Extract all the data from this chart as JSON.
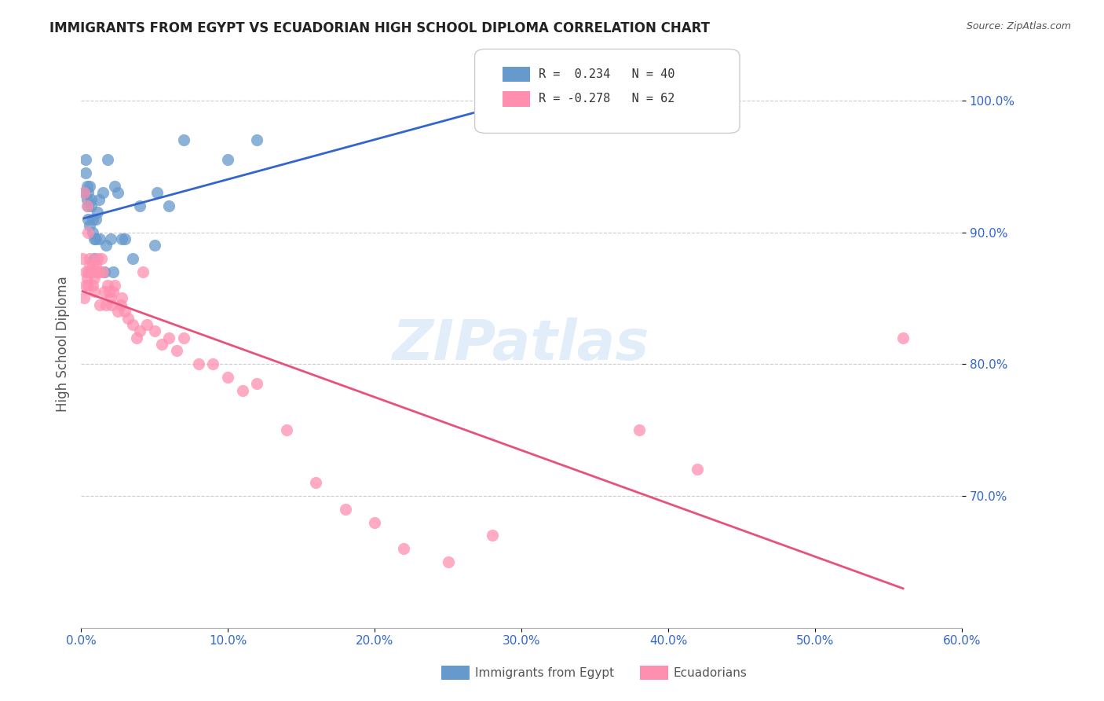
{
  "title": "IMMIGRANTS FROM EGYPT VS ECUADORIAN HIGH SCHOOL DIPLOMA CORRELATION CHART",
  "source": "Source: ZipAtlas.com",
  "ylabel": "High School Diploma",
  "xlim": [
    0.0,
    0.6
  ],
  "ylim": [
    0.6,
    1.03
  ],
  "yticks": [
    0.7,
    0.8,
    0.9,
    1.0
  ],
  "xticks": [
    0.0,
    0.1,
    0.2,
    0.3,
    0.4,
    0.5,
    0.6
  ],
  "xtick_labels": [
    "0.0%",
    "10.0%",
    "20.0%",
    "30.0%",
    "40.0%",
    "50.0%",
    "60.0%"
  ],
  "ytick_labels": [
    "70.0%",
    "80.0%",
    "90.0%",
    "100.0%"
  ],
  "legend_r1": "R =  0.234",
  "legend_n1": "N = 40",
  "legend_r2": "R = -0.278",
  "legend_n2": "N = 62",
  "color_egypt": "#6699CC",
  "color_ecuador": "#FF8FAF",
  "color_axis": "#3366CC",
  "watermark": "ZIPatlas",
  "egypt_x": [
    0.002,
    0.003,
    0.003,
    0.004,
    0.004,
    0.005,
    0.005,
    0.005,
    0.006,
    0.006,
    0.007,
    0.007,
    0.008,
    0.008,
    0.009,
    0.009,
    0.01,
    0.01,
    0.011,
    0.012,
    0.013,
    0.015,
    0.016,
    0.017,
    0.018,
    0.02,
    0.022,
    0.023,
    0.025,
    0.028,
    0.03,
    0.035,
    0.04,
    0.05,
    0.052,
    0.06,
    0.07,
    0.1,
    0.12,
    0.28
  ],
  "egypt_y": [
    0.93,
    0.945,
    0.955,
    0.925,
    0.935,
    0.91,
    0.92,
    0.93,
    0.935,
    0.905,
    0.92,
    0.925,
    0.9,
    0.91,
    0.895,
    0.88,
    0.91,
    0.895,
    0.915,
    0.925,
    0.895,
    0.93,
    0.87,
    0.89,
    0.955,
    0.895,
    0.87,
    0.935,
    0.93,
    0.895,
    0.895,
    0.88,
    0.92,
    0.89,
    0.93,
    0.92,
    0.97,
    0.955,
    0.97,
    0.99
  ],
  "ecuador_x": [
    0.001,
    0.002,
    0.002,
    0.003,
    0.003,
    0.004,
    0.004,
    0.005,
    0.005,
    0.005,
    0.006,
    0.006,
    0.007,
    0.008,
    0.008,
    0.009,
    0.009,
    0.01,
    0.01,
    0.011,
    0.012,
    0.013,
    0.014,
    0.015,
    0.016,
    0.017,
    0.018,
    0.019,
    0.02,
    0.021,
    0.022,
    0.023,
    0.025,
    0.027,
    0.028,
    0.03,
    0.032,
    0.035,
    0.038,
    0.04,
    0.042,
    0.045,
    0.05,
    0.055,
    0.06,
    0.065,
    0.07,
    0.08,
    0.09,
    0.1,
    0.11,
    0.12,
    0.14,
    0.16,
    0.18,
    0.2,
    0.22,
    0.25,
    0.28,
    0.56,
    0.38,
    0.42
  ],
  "ecuador_y": [
    0.88,
    0.93,
    0.85,
    0.87,
    0.86,
    0.865,
    0.92,
    0.9,
    0.86,
    0.87,
    0.88,
    0.875,
    0.87,
    0.875,
    0.86,
    0.865,
    0.855,
    0.875,
    0.87,
    0.88,
    0.87,
    0.845,
    0.88,
    0.87,
    0.855,
    0.845,
    0.86,
    0.855,
    0.85,
    0.845,
    0.855,
    0.86,
    0.84,
    0.845,
    0.85,
    0.84,
    0.835,
    0.83,
    0.82,
    0.825,
    0.87,
    0.83,
    0.825,
    0.815,
    0.82,
    0.81,
    0.82,
    0.8,
    0.8,
    0.79,
    0.78,
    0.785,
    0.75,
    0.71,
    0.69,
    0.68,
    0.66,
    0.65,
    0.67,
    0.82,
    0.75,
    0.72
  ]
}
